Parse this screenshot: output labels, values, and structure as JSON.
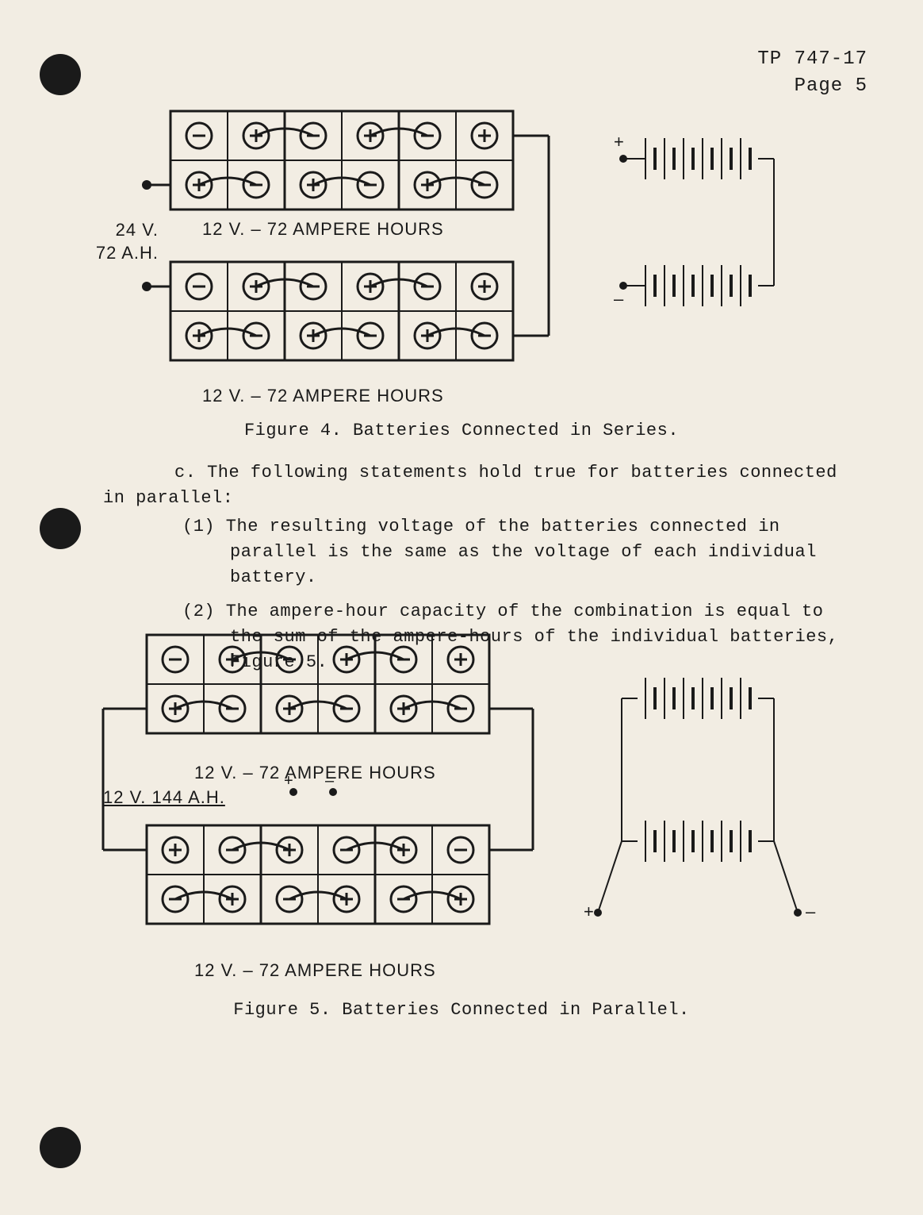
{
  "header": {
    "doc_id": "TP 747-17",
    "page_label": "Page 5"
  },
  "fig4": {
    "left_label_line1": "24 V.",
    "left_label_line2": "72 A.H.",
    "bank_label": "12 V. – 72 AMPERE HOURS",
    "caption": "Figure 4.  Batteries Connected in Series.",
    "stroke": "#1a1a1a",
    "cell_sign_top": [
      "-",
      "+",
      "-",
      "+",
      "-",
      "+"
    ],
    "cell_sign_bot": [
      "+",
      "-",
      "+",
      "-",
      "+",
      "-"
    ]
  },
  "para": {
    "lead": "c.  The following statements hold true for batteries connected in parallel:",
    "item1": "(1)  The resulting voltage of the batteries connected in parallel is the same as the voltage of each individual battery.",
    "item2": "(2)  The ampere-hour capacity of the combination is equal to the sum of the ampere-hours of the individual batteries, Figure 5."
  },
  "fig5": {
    "bank_label": "12 V. – 72 AMPERE HOURS",
    "mid_label": "12 V.   144 A.H.",
    "caption": "Figure 5.  Batteries Connected in Parallel.",
    "stroke": "#1a1a1a",
    "cell_sign_top_bank1": [
      "-",
      "+",
      "-",
      "+",
      "-",
      "+"
    ],
    "cell_sign_bot_bank1": [
      "+",
      "-",
      "+",
      "-",
      "+",
      "-"
    ],
    "cell_sign_top_bank2": [
      "+",
      "-",
      "+",
      "-",
      "+",
      "-"
    ],
    "cell_sign_bot_bank2": [
      "-",
      "+",
      "-",
      "+",
      "-",
      "+"
    ]
  }
}
